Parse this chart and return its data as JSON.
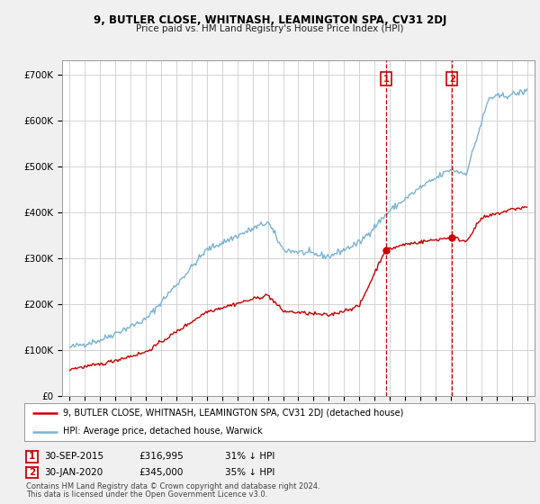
{
  "title1": "9, BUTLER CLOSE, WHITNASH, LEAMINGTON SPA, CV31 2DJ",
  "title2": "Price paid vs. HM Land Registry's House Price Index (HPI)",
  "ylabel_values": [
    0,
    100000,
    200000,
    300000,
    400000,
    500000,
    600000,
    700000
  ],
  "ylabel_labels": [
    "£0",
    "£100K",
    "£200K",
    "£300K",
    "£400K",
    "£500K",
    "£600K",
    "£700K"
  ],
  "ylim": [
    0,
    730000
  ],
  "xlim_start": 1994.5,
  "xlim_end": 2025.5,
  "hpi_color": "#7ab3d4",
  "price_color": "#cc0000",
  "marker1_date": 2015.75,
  "marker1_price": 316995,
  "marker2_date": 2020.08,
  "marker2_price": 345000,
  "legend_line1": "9, BUTLER CLOSE, WHITNASH, LEAMINGTON SPA, CV31 2DJ (detached house)",
  "legend_line2": "HPI: Average price, detached house, Warwick",
  "ann1_date": "30-SEP-2015",
  "ann1_price": "£316,995",
  "ann1_hpi": "31% ↓ HPI",
  "ann2_date": "30-JAN-2020",
  "ann2_price": "£345,000",
  "ann2_hpi": "35% ↓ HPI",
  "footer1": "Contains HM Land Registry data © Crown copyright and database right 2024.",
  "footer2": "This data is licensed under the Open Government Licence v3.0.",
  "background_color": "#f0f0f0",
  "plot_bg_color": "#ffffff",
  "grid_color": "#cccccc"
}
